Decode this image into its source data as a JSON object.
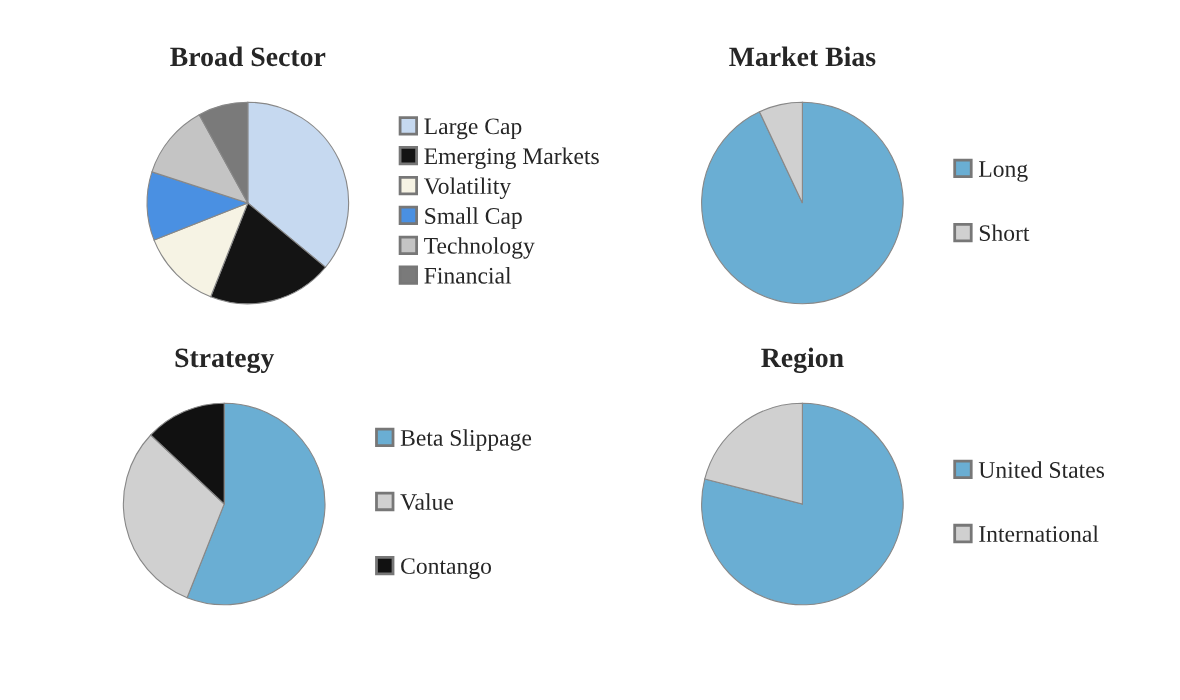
{
  "chart_data": [
    {
      "type": "pie",
      "title": "Broad Sector",
      "categories": [
        "Large Cap",
        "Emerging Markets",
        "Volatility",
        "Small Cap",
        "Technology",
        "Financial"
      ],
      "values": [
        36,
        20,
        13,
        11,
        12,
        8
      ],
      "colors": [
        "#c6d9f0",
        "#141414",
        "#f6f3e4",
        "#4a90e2",
        "#c4c4c4",
        "#7a7a7a"
      ],
      "legend": "right"
    },
    {
      "type": "pie",
      "title": "Market Bias",
      "categories": [
        "Long",
        "Short"
      ],
      "values": [
        93,
        7
      ],
      "colors": [
        "#6aaed3",
        "#d0d0d0"
      ],
      "legend": "right"
    },
    {
      "type": "pie",
      "title": "Strategy",
      "categories": [
        "Beta Slippage",
        "Value",
        "Contango"
      ],
      "values": [
        56,
        31,
        13
      ],
      "colors": [
        "#6aaed3",
        "#d0d0d0",
        "#111111"
      ],
      "legend": "right"
    },
    {
      "type": "pie",
      "title": "Region",
      "categories": [
        "United States",
        "International"
      ],
      "values": [
        79,
        21
      ],
      "colors": [
        "#6aaed3",
        "#d0d0d0"
      ],
      "legend": "right"
    }
  ]
}
